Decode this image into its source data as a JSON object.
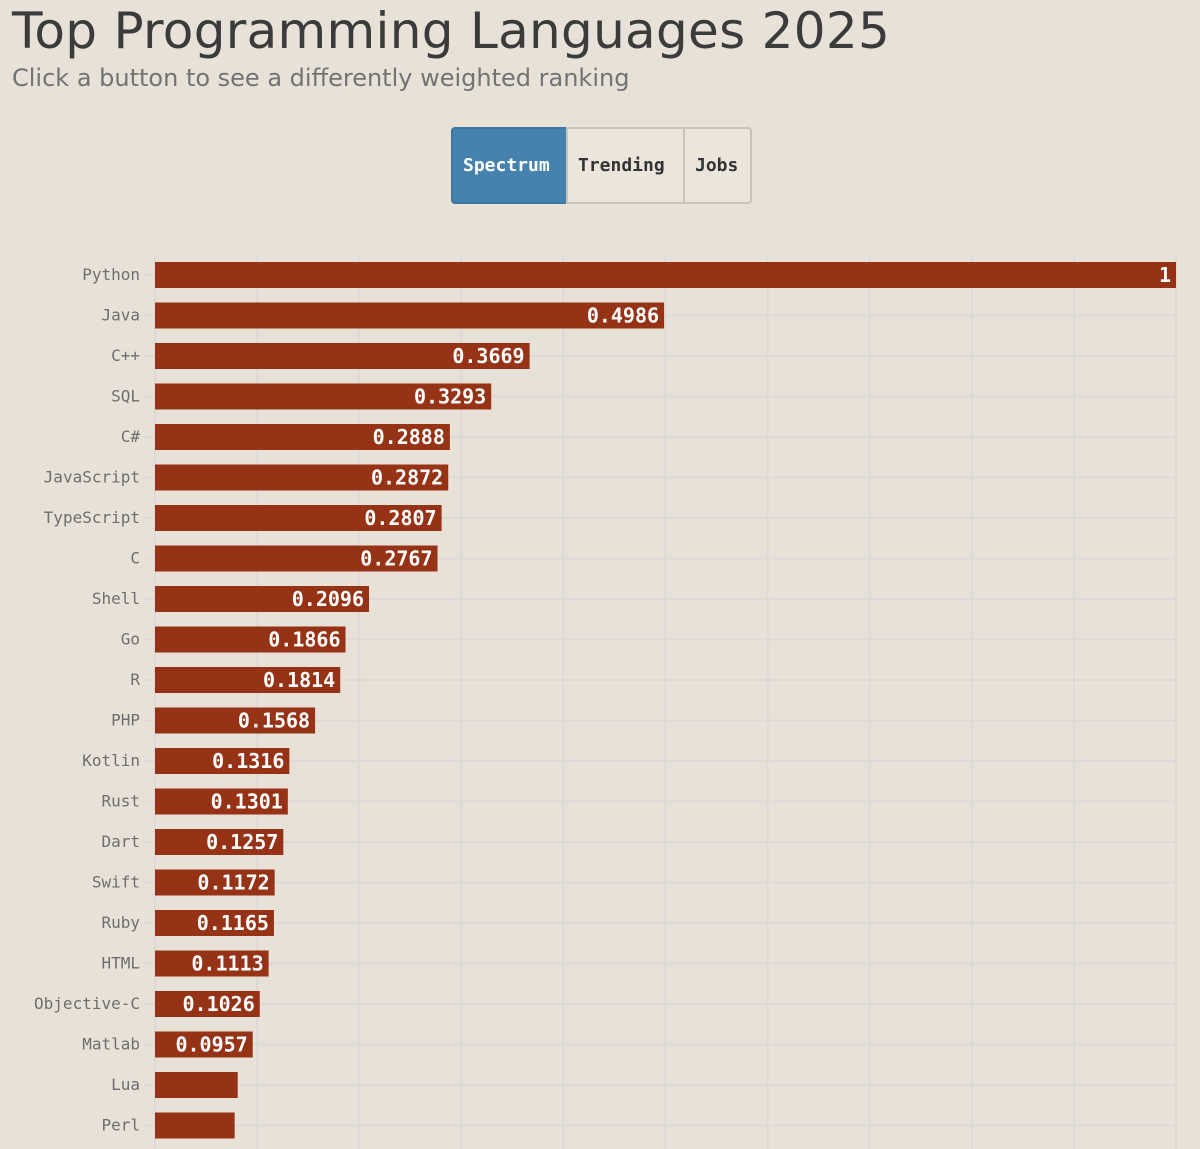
{
  "header": {
    "title": "Top Programming Languages 2025",
    "subtitle": "Click a button to see a differently weighted ranking"
  },
  "buttons": [
    {
      "label": "Spectrum",
      "active": true
    },
    {
      "label": "Trending",
      "active": false
    },
    {
      "label": "Jobs",
      "active": false
    }
  ],
  "colors": {
    "bar": "#963215",
    "active_button": "#4682ae",
    "background": "#e8e1d7",
    "grid": "#dcd9d6"
  },
  "chart_data": {
    "type": "bar",
    "orientation": "horizontal",
    "categories": [
      "Python",
      "Java",
      "C++",
      "SQL",
      "C#",
      "JavaScript",
      "TypeScript",
      "C",
      "Shell",
      "Go",
      "R",
      "PHP",
      "Kotlin",
      "Rust",
      "Dart",
      "Swift",
      "Ruby",
      "HTML",
      "Objective-C",
      "Matlab",
      "Lua",
      "Perl"
    ],
    "values": [
      1,
      0.4986,
      0.3669,
      0.3293,
      0.2888,
      0.2872,
      0.2807,
      0.2767,
      0.2096,
      0.1866,
      0.1814,
      0.1568,
      0.1316,
      0.1301,
      0.1257,
      0.1172,
      0.1165,
      0.1113,
      0.1026,
      0.0957,
      0.081,
      0.078
    ],
    "data_labels": [
      "1",
      "0.4986",
      "0.3669",
      "0.3293",
      "0.2888",
      "0.2872",
      "0.2807",
      "0.2767",
      "0.2096",
      "0.1866",
      "0.1814",
      "0.1568",
      "0.1316",
      "0.1301",
      "0.1257",
      "0.1172",
      "0.1165",
      "0.1113",
      "0.1026",
      "0.0957",
      "",
      ""
    ],
    "xlim": [
      0,
      1
    ],
    "grid": true
  }
}
